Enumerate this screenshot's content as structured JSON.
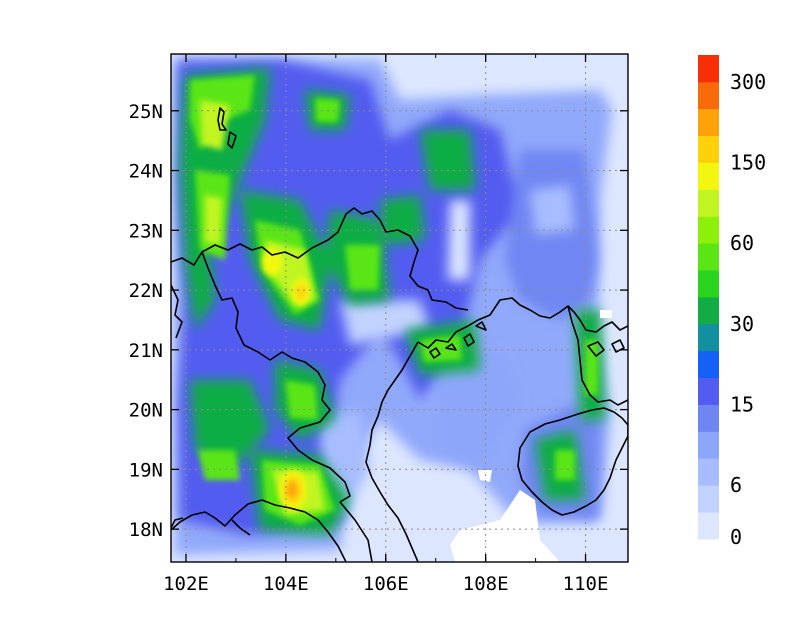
{
  "chart_data": {
    "type": "heatmap",
    "title": "",
    "xlabel": "",
    "ylabel": "",
    "xlim": [
      101.7,
      110.85
    ],
    "ylim": [
      17.45,
      25.95
    ],
    "x_ticks": [
      {
        "value": 102,
        "label": "102E"
      },
      {
        "value": 104,
        "label": "104E"
      },
      {
        "value": 106,
        "label": "106E"
      },
      {
        "value": 108,
        "label": "108E"
      },
      {
        "value": 110,
        "label": "110E"
      }
    ],
    "y_ticks": [
      {
        "value": 18,
        "label": "18N"
      },
      {
        "value": 19,
        "label": "19N"
      },
      {
        "value": 20,
        "label": "20N"
      },
      {
        "value": 21,
        "label": "21N"
      },
      {
        "value": 22,
        "label": "22N"
      },
      {
        "value": 23,
        "label": "23N"
      },
      {
        "value": 24,
        "label": "24N"
      },
      {
        "value": 25,
        "label": "25N"
      }
    ],
    "grid": true,
    "colorbar": {
      "placement": "right",
      "levels": [
        0,
        3,
        6,
        9,
        12,
        15,
        20,
        25,
        30,
        40,
        50,
        60,
        80,
        100,
        150,
        200,
        250,
        300
      ],
      "labeled": [
        {
          "level": 0,
          "label": "0"
        },
        {
          "level": 6,
          "label": "6"
        },
        {
          "level": 15,
          "label": "15"
        },
        {
          "level": 30,
          "label": "30"
        },
        {
          "level": 60,
          "label": "60"
        },
        {
          "level": 150,
          "label": "150"
        },
        {
          "level": 300,
          "label": "300"
        }
      ],
      "colors": [
        "#dce6ff",
        "#c2d2ff",
        "#a7bdff",
        "#8da6fa",
        "#6f86f2",
        "#535cf0",
        "#1560f7",
        "#1290a0",
        "#11ad44",
        "#2ad31d",
        "#5ae614",
        "#8cf00a",
        "#c0f523",
        "#f3f70f",
        "#fed10b",
        "#fda20b",
        "#f86a0a",
        "#f82e05"
      ]
    },
    "field_hotspots": [
      {
        "lon": 104.05,
        "lat": 18.6,
        "value": 150
      },
      {
        "lon": 103.65,
        "lat": 22.5,
        "value": 90
      },
      {
        "lon": 104.3,
        "lat": 21.9,
        "value": 100
      },
      {
        "lon": 102.8,
        "lat": 25.0,
        "value": 55
      },
      {
        "lon": 105.9,
        "lat": 22.1,
        "value": 50
      },
      {
        "lon": 109.9,
        "lat": 19.6,
        "value": 35
      }
    ]
  }
}
